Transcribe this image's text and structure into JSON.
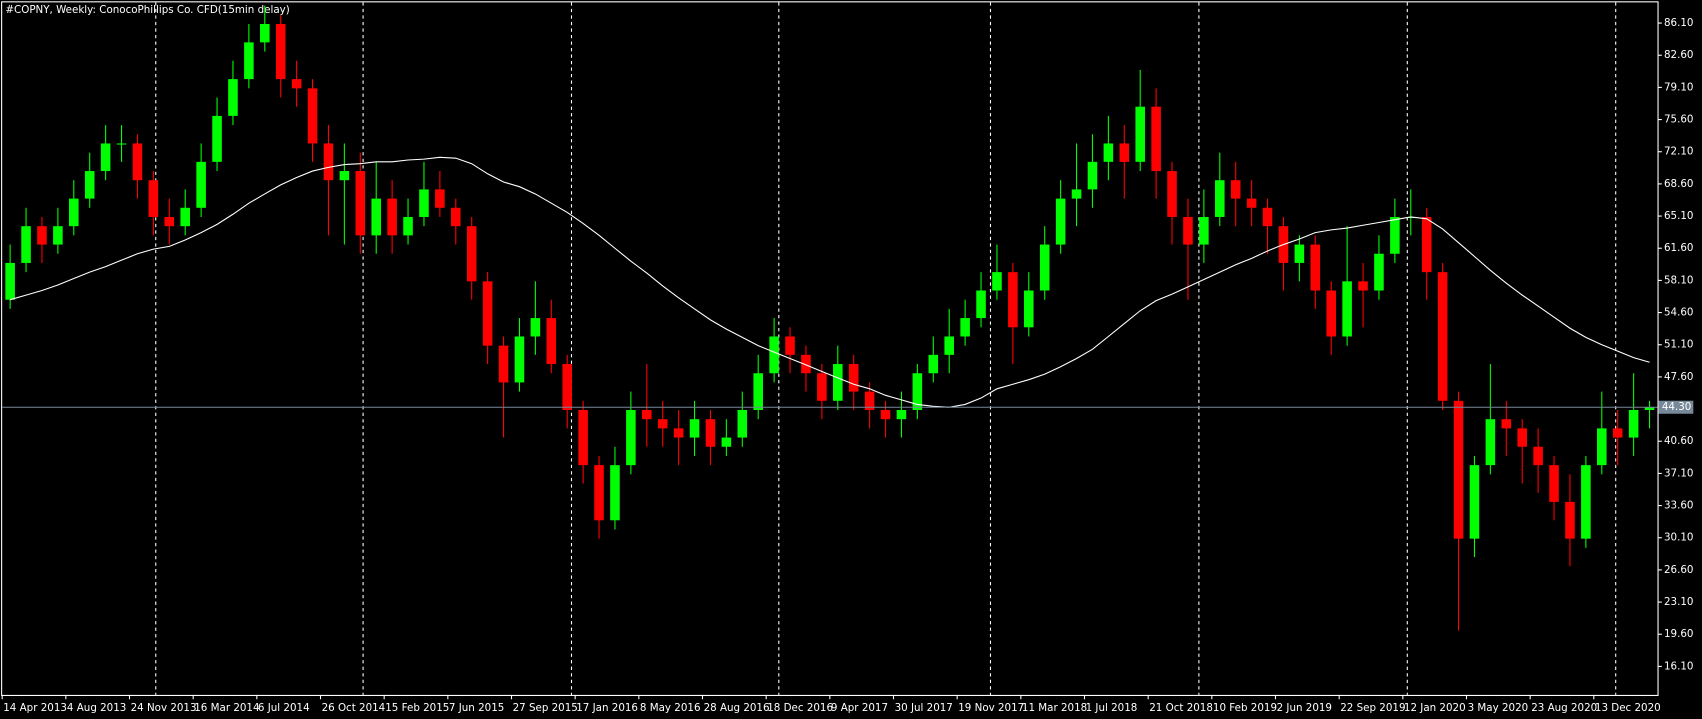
{
  "chart_data": {
    "type": "candlestick",
    "title": "#COPNY, Weekly:  ConocoPhillips Co. CFD(15min delay)",
    "categories": [
      "14 Apr 2013",
      null,
      null,
      null,
      "4 Aug 2013",
      null,
      null,
      null,
      "24 Nov 2013",
      null,
      null,
      null,
      "16 Mar 2014",
      null,
      null,
      null,
      "6 Jul 2014",
      null,
      null,
      null,
      "26 Oct 2014",
      null,
      null,
      null,
      "15 Feb 2015",
      null,
      null,
      null,
      "7 Jun 2015",
      null,
      null,
      null,
      "27 Sep 2015",
      null,
      null,
      null,
      "17 Jan 2016",
      null,
      null,
      null,
      "8 May 2016",
      null,
      null,
      null,
      "28 Aug 2016",
      null,
      null,
      null,
      "18 Dec 2016",
      null,
      null,
      null,
      "9 Apr 2017",
      null,
      null,
      null,
      "30 Jul 2017",
      null,
      null,
      null,
      "19 Nov 2017",
      null,
      null,
      null,
      "11 Mar 2018",
      null,
      null,
      null,
      "1 Jul 2018",
      null,
      null,
      null,
      "21 Oct 2018",
      null,
      null,
      null,
      "10 Feb 2019",
      null,
      null,
      null,
      "2 Jun 2019",
      null,
      null,
      null,
      "22 Sep 2019",
      null,
      null,
      null,
      "12 Jan 2020",
      null,
      null,
      null,
      "3 May 2020",
      null,
      null,
      null,
      "23 Aug 2020",
      null,
      null,
      null,
      "13 Dec 2020",
      null,
      null,
      null
    ],
    "open": [
      56,
      60,
      64,
      62,
      64,
      67,
      70,
      73,
      73,
      69,
      65,
      64,
      66,
      71,
      76,
      80,
      84,
      86,
      80,
      79,
      73,
      69,
      70,
      63,
      67,
      63,
      65,
      68,
      66,
      64,
      58,
      51,
      47,
      52,
      54,
      49,
      44,
      38,
      32,
      38,
      44,
      43,
      42,
      41,
      43,
      40,
      41,
      44,
      48,
      52,
      50,
      48,
      45,
      49,
      46,
      44,
      43,
      44,
      48,
      50,
      52,
      54,
      57,
      59,
      53,
      57,
      62,
      67,
      68,
      71,
      73,
      71,
      77,
      70,
      65,
      62,
      65,
      69,
      67,
      66,
      64,
      60,
      62,
      57,
      52,
      58,
      57,
      61,
      65,
      65,
      59,
      45,
      30,
      38,
      43,
      42,
      40,
      38,
      34,
      30,
      38,
      42,
      41,
      44
    ],
    "high": [
      62,
      66,
      65,
      66,
      69,
      72,
      75,
      75,
      74,
      70,
      67,
      68,
      73,
      78,
      82,
      86,
      88,
      87,
      82,
      80,
      75,
      73,
      72,
      71,
      69,
      67,
      71,
      70,
      67,
      65,
      59,
      52,
      54,
      58,
      56,
      50,
      45,
      39,
      40,
      46,
      49,
      45,
      44,
      45,
      44,
      43,
      46,
      50,
      54,
      53,
      51,
      49,
      51,
      50,
      47,
      45,
      46,
      49,
      52,
      55,
      56,
      59,
      62,
      60,
      59,
      64,
      69,
      73,
      74,
      76,
      75,
      81,
      79,
      71,
      67,
      68,
      72,
      71,
      69,
      67,
      65,
      63,
      63,
      58,
      64,
      60,
      63,
      67,
      68,
      66,
      60,
      46,
      39,
      49,
      45,
      43,
      42,
      39,
      37,
      39,
      46,
      44,
      48,
      45
    ],
    "low": [
      55,
      59,
      60,
      61,
      63,
      66,
      69,
      71,
      67,
      63,
      62,
      63,
      65,
      70,
      75,
      79,
      83,
      78,
      77,
      71,
      63,
      62,
      61,
      61,
      61,
      62,
      64,
      65,
      62,
      56,
      49,
      41,
      46,
      50,
      48,
      42,
      36,
      30,
      31,
      37,
      40,
      40,
      38,
      39,
      38,
      39,
      40,
      43,
      47,
      48,
      46,
      43,
      44,
      44,
      42,
      41,
      41,
      43,
      47,
      48,
      51,
      53,
      56,
      49,
      52,
      56,
      61,
      64,
      66,
      69,
      67,
      70,
      67,
      62,
      56,
      60,
      64,
      64,
      64,
      61,
      57,
      58,
      55,
      50,
      51,
      53,
      56,
      60,
      63,
      56,
      44,
      20,
      28,
      37,
      39,
      36,
      35,
      32,
      27,
      29,
      37,
      38,
      39,
      42
    ],
    "close": [
      60,
      64,
      62,
      64,
      67,
      70,
      73,
      73,
      69,
      65,
      64,
      66,
      71,
      76,
      80,
      84,
      86,
      80,
      79,
      73,
      69,
      70,
      63,
      67,
      63,
      65,
      68,
      66,
      64,
      58,
      51,
      47,
      52,
      54,
      49,
      44,
      38,
      32,
      38,
      44,
      43,
      42,
      41,
      43,
      40,
      41,
      44,
      48,
      52,
      50,
      48,
      45,
      49,
      46,
      44,
      43,
      44,
      48,
      50,
      52,
      54,
      57,
      59,
      53,
      57,
      62,
      67,
      68,
      71,
      73,
      71,
      77,
      70,
      65,
      62,
      65,
      69,
      67,
      66,
      64,
      60,
      62,
      57,
      52,
      58,
      57,
      61,
      65,
      65,
      59,
      45,
      30,
      38,
      43,
      42,
      40,
      38,
      34,
      30,
      38,
      42,
      41,
      44,
      44.3
    ],
    "up_color": "#00ff00",
    "down_color": "#ff0000",
    "ma": {
      "color": "#ffffff",
      "values": [
        56,
        56.5,
        57,
        57.6,
        58.3,
        59,
        59.6,
        60.3,
        61,
        61.5,
        61.8,
        62.5,
        63.3,
        64.2,
        65.3,
        66.5,
        67.5,
        68.5,
        69.3,
        70,
        70.4,
        70.7,
        70.8,
        71,
        71,
        71.2,
        71.3,
        71.5,
        71.4,
        70.8,
        69.7,
        68.8,
        68.3,
        67.5,
        66.5,
        65.5,
        64.3,
        63,
        61.6,
        60.2,
        58.9,
        57.5,
        56.2,
        55,
        53.8,
        52.8,
        51.9,
        51,
        50.3,
        49.6,
        48.9,
        48.2,
        47.5,
        46.8,
        46.3,
        45.6,
        45.1,
        44.6,
        44.4,
        44.3,
        44.6,
        45.3,
        46.3,
        46.8,
        47.3,
        47.9,
        48.7,
        49.6,
        50.6,
        52,
        53.4,
        54.8,
        55.9,
        56.6,
        57.4,
        58.2,
        59,
        59.8,
        60.5,
        61.3,
        62,
        62.6,
        63.3,
        63.6,
        63.8,
        64.1,
        64.4,
        64.7,
        65,
        64.8,
        63.7,
        62.2,
        60.7,
        59.2,
        57.8,
        56.5,
        55.3,
        54.1,
        52.9,
        51.9,
        51.1,
        50.4,
        49.7,
        49.2
      ]
    },
    "price_line": {
      "value": 44.3,
      "label": "44.30",
      "color": "#778899"
    },
    "ylim": [
      13.0,
      88.35
    ],
    "yticks": [
      {
        "value": 86.1,
        "label": "86.10"
      },
      {
        "value": 82.6,
        "label": "82.60"
      },
      {
        "value": 79.1,
        "label": "79.10"
      },
      {
        "value": 75.6,
        "label": "75.60"
      },
      {
        "value": 72.1,
        "label": "72.10"
      },
      {
        "value": 68.6,
        "label": "68.60"
      },
      {
        "value": 65.1,
        "label": "65.10"
      },
      {
        "value": 61.6,
        "label": "61.60"
      },
      {
        "value": 58.1,
        "label": "58.10"
      },
      {
        "value": 54.6,
        "label": "54.60"
      },
      {
        "value": 51.1,
        "label": "51.10"
      },
      {
        "value": 47.6,
        "label": "47.60"
      },
      {
        "value": 40.6,
        "label": "40.60"
      },
      {
        "value": 37.1,
        "label": "37.10"
      },
      {
        "value": 33.6,
        "label": "33.60"
      },
      {
        "value": 30.1,
        "label": "30.10"
      },
      {
        "value": 26.6,
        "label": "26.60"
      },
      {
        "value": 23.1,
        "label": "23.10"
      },
      {
        "value": 19.6,
        "label": "19.60"
      },
      {
        "value": 16.1,
        "label": "16.10"
      }
    ]
  }
}
